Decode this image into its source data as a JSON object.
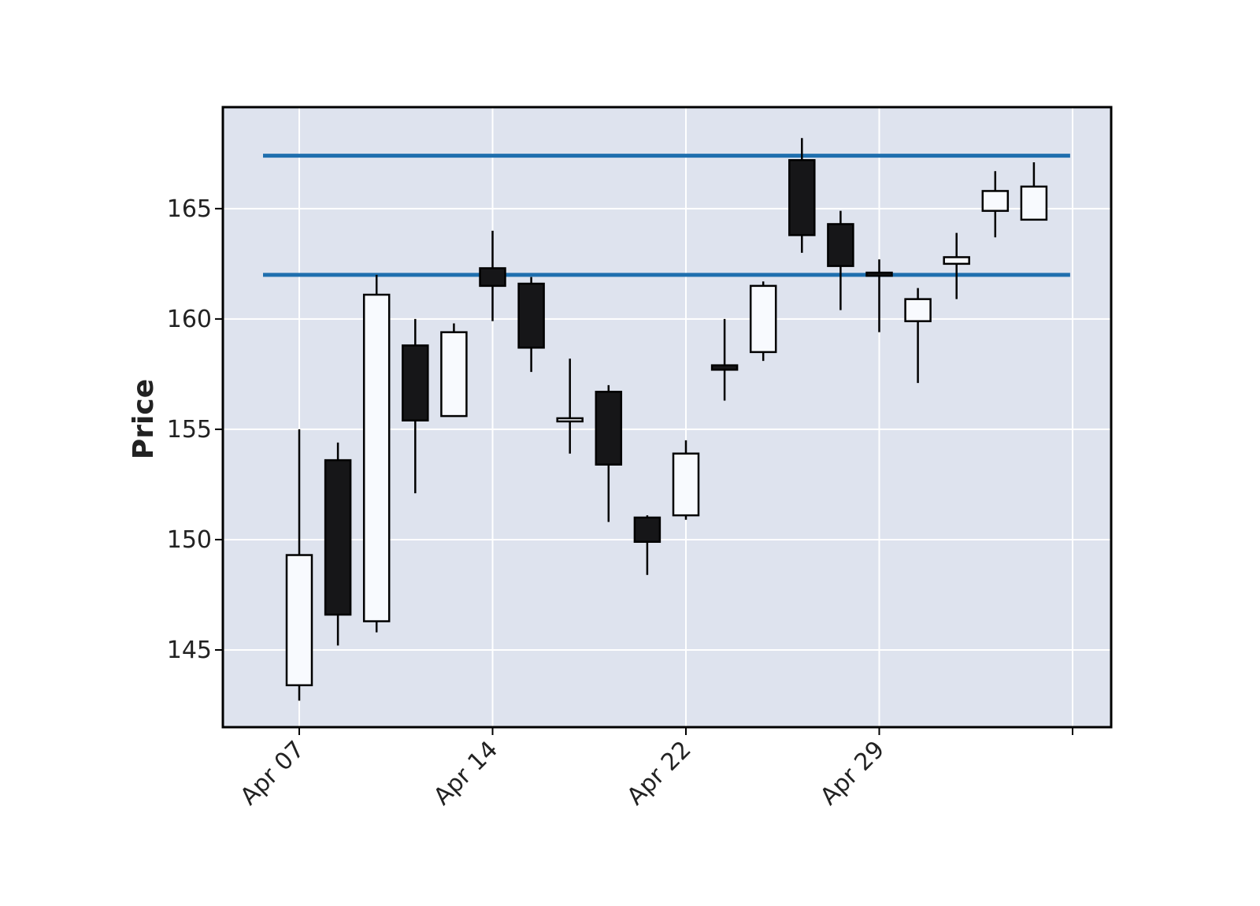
{
  "chart_data": {
    "type": "candlestick",
    "ylabel": "Price",
    "ylim": [
      141.5,
      169.6
    ],
    "yticks": [
      145,
      150,
      155,
      160,
      165
    ],
    "xticks": [
      {
        "index": 0,
        "label": "Apr 07"
      },
      {
        "index": 5,
        "label": "Apr 14"
      },
      {
        "index": 10,
        "label": "Apr 22"
      },
      {
        "index": 15,
        "label": "Apr 29"
      },
      {
        "index": 20,
        "label": ""
      }
    ],
    "grid": true,
    "colors": {
      "background": "#dee3ee",
      "up_body": "#f8fafe",
      "down_body": "#161618",
      "edge": "#000000",
      "hline": "#1f6fae",
      "grid": "#ffffff"
    },
    "hlines": [
      167.4,
      162.0
    ],
    "candles": [
      {
        "open": 143.4,
        "high": 155.0,
        "low": 142.7,
        "close": 149.3
      },
      {
        "open": 153.6,
        "high": 154.4,
        "low": 145.2,
        "close": 146.6
      },
      {
        "open": 146.3,
        "high": 162.0,
        "low": 145.8,
        "close": 161.1
      },
      {
        "open": 158.8,
        "high": 160.0,
        "low": 152.1,
        "close": 155.4
      },
      {
        "open": 155.6,
        "high": 159.8,
        "low": 155.6,
        "close": 159.4
      },
      {
        "open": 162.3,
        "high": 164.0,
        "low": 159.9,
        "close": 161.5
      },
      {
        "open": 161.6,
        "high": 161.9,
        "low": 157.6,
        "close": 158.7
      },
      {
        "open": 155.4,
        "high": 158.2,
        "low": 153.9,
        "close": 155.5
      },
      {
        "open": 156.7,
        "high": 157.0,
        "low": 150.8,
        "close": 153.4
      },
      {
        "open": 151.0,
        "high": 151.1,
        "low": 148.4,
        "close": 149.9
      },
      {
        "open": 151.1,
        "high": 154.5,
        "low": 150.9,
        "close": 153.9
      },
      {
        "open": 157.9,
        "high": 160.0,
        "low": 156.3,
        "close": 157.7
      },
      {
        "open": 158.5,
        "high": 161.7,
        "low": 158.1,
        "close": 161.5
      },
      {
        "open": 167.2,
        "high": 168.2,
        "low": 163.0,
        "close": 163.8
      },
      {
        "open": 164.3,
        "high": 164.9,
        "low": 160.4,
        "close": 162.4
      },
      {
        "open": 162.1,
        "high": 162.7,
        "low": 159.4,
        "close": 162.0
      },
      {
        "open": 159.9,
        "high": 161.4,
        "low": 157.1,
        "close": 160.9
      },
      {
        "open": 162.5,
        "high": 163.9,
        "low": 160.9,
        "close": 162.8
      },
      {
        "open": 164.9,
        "high": 166.7,
        "low": 163.7,
        "close": 165.8
      },
      {
        "open": 164.5,
        "high": 167.1,
        "low": 164.5,
        "close": 166.0
      }
    ]
  }
}
